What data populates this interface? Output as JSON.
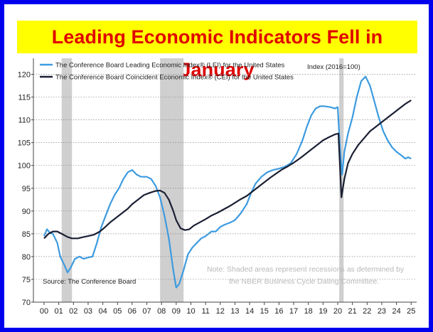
{
  "headline": "Leading Economic Indicators Fell in January",
  "colors": {
    "frame": "#0000ee",
    "headline_bg": "#ffff00",
    "headline_text": "#e00000",
    "lei": "#3d9be0",
    "cei": "#1a1f33",
    "recession": "#cfcfcf"
  },
  "chart_data": {
    "type": "line",
    "index_label": "Index (2016=100)",
    "source": "Source: The Conference Board",
    "note_lines": [
      "Note: Shaded areas represent recessions as determined by",
      "the NBER Business Cycle Dating Committee."
    ],
    "y_ticks": [
      70,
      75,
      80,
      85,
      90,
      95,
      100,
      105,
      110,
      115,
      120
    ],
    "y_tick_labels": [
      "70",
      "75",
      "80",
      "85",
      "90",
      "95",
      "100",
      "105",
      "110",
      "115",
      "120"
    ],
    "ylim": [
      70,
      122
    ],
    "x_tick_labels": [
      "00",
      "01",
      "02",
      "03",
      "04",
      "05",
      "06",
      "07",
      "08",
      "09",
      "10",
      "11",
      "12",
      "13",
      "14",
      "15",
      "16",
      "17",
      "18",
      "19",
      "20",
      "21",
      "22",
      "23",
      "24",
      "25"
    ],
    "xlim": [
      2000,
      2025.5
    ],
    "grid": true,
    "legend_position": "top-left",
    "recessions": [
      [
        2001.2,
        2001.9
      ],
      [
        2007.9,
        2009.5
      ],
      [
        2020.1,
        2020.4
      ]
    ],
    "series": [
      {
        "name": "The Conference Board Leading Economic Index® (LEI) for the United States",
        "points": [
          [
            2000,
            84.5
          ],
          [
            2000.2,
            86
          ],
          [
            2000.4,
            85.2
          ],
          [
            2000.6,
            85
          ],
          [
            2000.9,
            83
          ],
          [
            2001.1,
            80
          ],
          [
            2001.4,
            78
          ],
          [
            2001.6,
            76.5
          ],
          [
            2001.8,
            77.5
          ],
          [
            2002.1,
            79.5
          ],
          [
            2002.4,
            80
          ],
          [
            2002.7,
            79.5
          ],
          [
            2003.0,
            79.8
          ],
          [
            2003.3,
            80
          ],
          [
            2003.6,
            83
          ],
          [
            2003.9,
            86.5
          ],
          [
            2004.2,
            89
          ],
          [
            2004.5,
            91.5
          ],
          [
            2004.8,
            93.5
          ],
          [
            2005.1,
            95
          ],
          [
            2005.4,
            97
          ],
          [
            2005.7,
            98.5
          ],
          [
            2006.0,
            99
          ],
          [
            2006.3,
            98
          ],
          [
            2006.6,
            97.5
          ],
          [
            2007.0,
            97.5
          ],
          [
            2007.3,
            97
          ],
          [
            2007.6,
            95.5
          ],
          [
            2007.9,
            93
          ],
          [
            2008.2,
            89
          ],
          [
            2008.5,
            84
          ],
          [
            2008.8,
            77
          ],
          [
            2009.0,
            73.2
          ],
          [
            2009.2,
            74
          ],
          [
            2009.5,
            77
          ],
          [
            2009.8,
            80.5
          ],
          [
            2010.1,
            82
          ],
          [
            2010.4,
            83
          ],
          [
            2010.7,
            84
          ],
          [
            2011.0,
            84.5
          ],
          [
            2011.4,
            85.5
          ],
          [
            2011.7,
            85.5
          ],
          [
            2012.0,
            86.5
          ],
          [
            2012.3,
            87
          ],
          [
            2012.7,
            87.5
          ],
          [
            2013.0,
            88
          ],
          [
            2013.4,
            89.5
          ],
          [
            2013.8,
            91.5
          ],
          [
            2014.1,
            94
          ],
          [
            2014.4,
            96
          ],
          [
            2014.8,
            97.5
          ],
          [
            2015.2,
            98.5
          ],
          [
            2015.6,
            99
          ],
          [
            2016.0,
            99.3
          ],
          [
            2016.4,
            99.7
          ],
          [
            2016.8,
            100.5
          ],
          [
            2017.2,
            102.5
          ],
          [
            2017.6,
            105.5
          ],
          [
            2017.9,
            108.5
          ],
          [
            2018.2,
            111
          ],
          [
            2018.5,
            112.5
          ],
          [
            2018.8,
            113
          ],
          [
            2019.1,
            113
          ],
          [
            2019.5,
            112.8
          ],
          [
            2019.8,
            112.5
          ],
          [
            2020.0,
            112.8
          ],
          [
            2020.15,
            104
          ],
          [
            2020.3,
            98
          ],
          [
            2020.45,
            103
          ],
          [
            2020.7,
            107
          ],
          [
            2021.0,
            110.5
          ],
          [
            2021.3,
            115
          ],
          [
            2021.6,
            118.5
          ],
          [
            2021.9,
            119.5
          ],
          [
            2022.2,
            117.5
          ],
          [
            2022.5,
            114
          ],
          [
            2022.8,
            110.5
          ],
          [
            2023.1,
            107.5
          ],
          [
            2023.4,
            105.5
          ],
          [
            2023.7,
            104
          ],
          [
            2024.0,
            103
          ],
          [
            2024.3,
            102.3
          ],
          [
            2024.6,
            101.5
          ],
          [
            2024.8,
            101.8
          ],
          [
            2025.0,
            101.5
          ]
        ]
      },
      {
        "name": "The Conference Board Coincident Economic Index® (CEI) for the United States",
        "points": [
          [
            2000,
            84
          ],
          [
            2000.3,
            85
          ],
          [
            2000.6,
            85.5
          ],
          [
            2000.9,
            85.5
          ],
          [
            2001.2,
            85
          ],
          [
            2001.6,
            84.3
          ],
          [
            2001.9,
            84
          ],
          [
            2002.3,
            84
          ],
          [
            2002.7,
            84.3
          ],
          [
            2003.0,
            84.5
          ],
          [
            2003.4,
            84.8
          ],
          [
            2003.8,
            85.5
          ],
          [
            2004.1,
            86.3
          ],
          [
            2004.5,
            87.5
          ],
          [
            2004.9,
            88.5
          ],
          [
            2005.3,
            89.5
          ],
          [
            2005.7,
            90.5
          ],
          [
            2006.0,
            91.5
          ],
          [
            2006.4,
            92.5
          ],
          [
            2006.8,
            93.5
          ],
          [
            2007.2,
            94
          ],
          [
            2007.6,
            94.4
          ],
          [
            2007.9,
            94.5
          ],
          [
            2008.2,
            94
          ],
          [
            2008.5,
            92.5
          ],
          [
            2008.8,
            90
          ],
          [
            2009.0,
            88
          ],
          [
            2009.3,
            86.2
          ],
          [
            2009.6,
            85.8
          ],
          [
            2009.9,
            86
          ],
          [
            2010.2,
            86.8
          ],
          [
            2010.6,
            87.5
          ],
          [
            2011.0,
            88.2
          ],
          [
            2011.4,
            89
          ],
          [
            2011.8,
            89.6
          ],
          [
            2012.2,
            90.3
          ],
          [
            2012.6,
            91
          ],
          [
            2013.0,
            91.8
          ],
          [
            2013.4,
            92.6
          ],
          [
            2013.8,
            93.3
          ],
          [
            2014.2,
            94.3
          ],
          [
            2014.6,
            95.3
          ],
          [
            2015.0,
            96.3
          ],
          [
            2015.4,
            97.3
          ],
          [
            2015.8,
            98.2
          ],
          [
            2016.2,
            99.1
          ],
          [
            2016.6,
            99.8
          ],
          [
            2017.0,
            100.6
          ],
          [
            2017.4,
            101.5
          ],
          [
            2017.8,
            102.5
          ],
          [
            2018.2,
            103.5
          ],
          [
            2018.6,
            104.5
          ],
          [
            2019.0,
            105.5
          ],
          [
            2019.4,
            106.2
          ],
          [
            2019.8,
            106.8
          ],
          [
            2020.05,
            107
          ],
          [
            2020.25,
            93
          ],
          [
            2020.45,
            97
          ],
          [
            2020.7,
            100.5
          ],
          [
            2021.0,
            102.5
          ],
          [
            2021.4,
            104.5
          ],
          [
            2021.8,
            106
          ],
          [
            2022.2,
            107.5
          ],
          [
            2022.6,
            108.5
          ],
          [
            2023.0,
            109.5
          ],
          [
            2023.4,
            110.5
          ],
          [
            2023.8,
            111.5
          ],
          [
            2024.2,
            112.5
          ],
          [
            2024.6,
            113.5
          ],
          [
            2025.0,
            114.3
          ]
        ]
      }
    ]
  }
}
